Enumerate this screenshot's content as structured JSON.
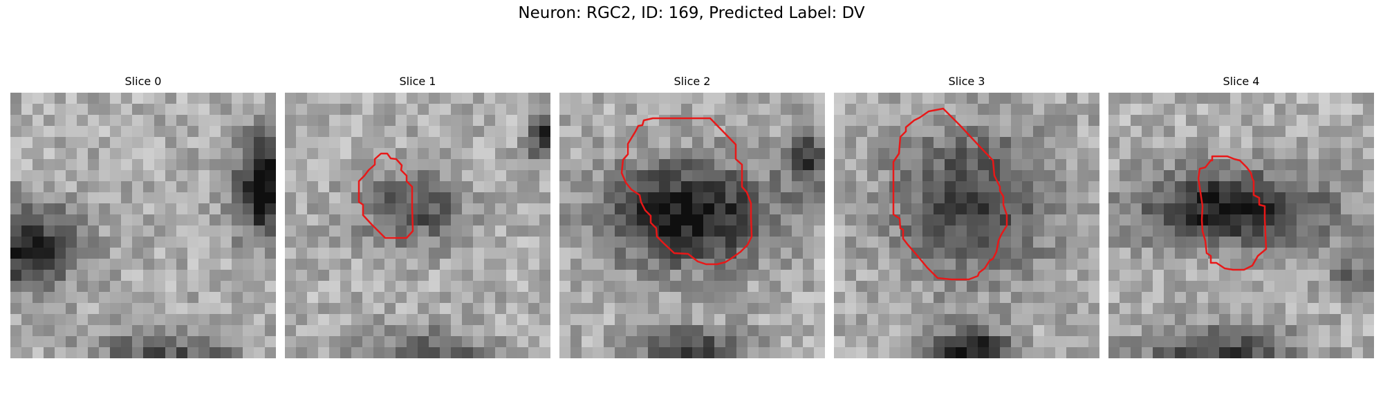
{
  "figure": {
    "title": "Neuron: RGC2, ID: 169, Predicted Label: DV"
  },
  "panels": [
    {
      "title": "Slice 0",
      "has_contour": false
    },
    {
      "title": "Slice 1",
      "has_contour": true
    },
    {
      "title": "Slice 2",
      "has_contour": true
    },
    {
      "title": "Slice 3",
      "has_contour": true
    },
    {
      "title": "Slice 4",
      "has_contour": true
    }
  ],
  "colors": {
    "contour": "#e81818",
    "background": "#ffffff"
  }
}
